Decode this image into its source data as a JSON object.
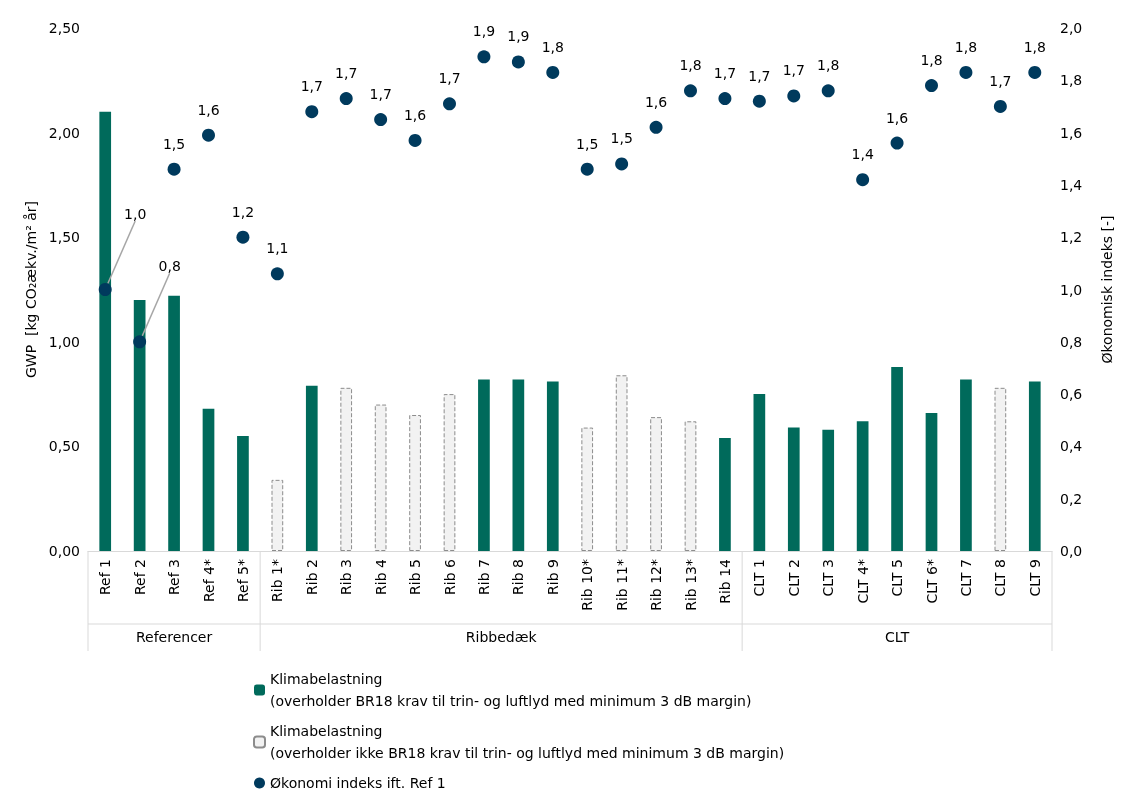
{
  "chart_data": {
    "type": "bar",
    "ylabel": "GWP  [kg CO₂ækv./m² år]",
    "y2label": "Økonomisk indeks [-]",
    "categories": [
      "Ref 1",
      "Ref 2",
      "Ref 3",
      "Ref 4*",
      "Ref 5*",
      "Rib 1*",
      "Rib 2",
      "Rib 3",
      "Rib 4",
      "Rib 5",
      "Rib 6",
      "Rib 7",
      "Rib 8",
      "Rib 9",
      "Rib 10*",
      "Rib 11*",
      "Rib 12*",
      "Rib 13*",
      "Rib 14",
      "CLT 1",
      "CLT 2",
      "CLT 3",
      "CLT 4*",
      "CLT 5",
      "CLT 6*",
      "CLT 7",
      "CLT 8",
      "CLT 9"
    ],
    "series": [
      {
        "name": "Klimabelastning\n(overholder BR18 krav til trin- og luftlyd med minimum 3 dB margin)",
        "color": "#006a5b",
        "values": [
          2.1,
          1.2,
          1.22,
          0.68,
          0.55,
          null,
          0.79,
          null,
          null,
          null,
          null,
          0.82,
          0.82,
          0.81,
          null,
          null,
          null,
          null,
          0.54,
          0.75,
          0.59,
          0.58,
          0.62,
          0.88,
          0.66,
          0.82,
          null,
          0.81
        ]
      },
      {
        "name": "Klimabelastning\n(overholder ikke BR18 krav til trin- og luftlyd med minimum 3 dB margin)",
        "color": "#f2f2f2",
        "line_style": "dashed",
        "values": [
          null,
          null,
          null,
          null,
          null,
          0.34,
          null,
          0.78,
          0.7,
          0.65,
          0.75,
          null,
          null,
          null,
          0.59,
          0.84,
          0.64,
          0.62,
          null,
          null,
          null,
          null,
          null,
          null,
          null,
          null,
          0.78,
          null
        ]
      },
      {
        "type": "scatter",
        "axis": "y2",
        "name": "Økonomi indeks ift. Ref 1",
        "color": "#003a5d",
        "marker": "circle",
        "values": [
          1.0,
          0.8,
          1.46,
          1.59,
          1.2,
          1.06,
          1.68,
          1.73,
          1.65,
          1.57,
          1.71,
          1.89,
          1.87,
          1.83,
          1.46,
          1.48,
          1.62,
          1.76,
          1.73,
          1.72,
          1.74,
          1.76,
          1.42,
          1.56,
          1.78,
          1.83,
          1.7,
          1.83
        ],
        "value_labels": [
          "1,0",
          "0,8",
          "1,5",
          "1,6",
          "1,2",
          "1,1",
          "1,7",
          "1,7",
          "1,7",
          "1,6",
          "1,7",
          "1,9",
          "1,9",
          "1,8",
          "1,5",
          "1,5",
          "1,6",
          "1,8",
          "1,7",
          "1,7",
          "1,7",
          "1,8",
          "1,4",
          "1,6",
          "1,8",
          "1,8",
          "1,7",
          "1,8"
        ]
      }
    ],
    "ylim": [
      0,
      2.5
    ],
    "yticks": [
      {
        "value": 0,
        "label": "0,00"
      },
      {
        "value": 0.5,
        "label": "0,50"
      },
      {
        "value": 1,
        "label": "1,00"
      },
      {
        "value": 1.5,
        "label": "1,50"
      },
      {
        "value": 2,
        "label": "2,00"
      },
      {
        "value": 2.5,
        "label": "2,50"
      }
    ],
    "y2lim": [
      0,
      2
    ],
    "y2ticks": [
      {
        "value": 0,
        "label": "0,0"
      },
      {
        "value": 0.2,
        "label": "0,2"
      },
      {
        "value": 0.4,
        "label": "0,4"
      },
      {
        "value": 0.6,
        "label": "0,6"
      },
      {
        "value": 0.8,
        "label": "0,8"
      },
      {
        "value": 1,
        "label": "1,0"
      },
      {
        "value": 1.2,
        "label": "1,2"
      },
      {
        "value": 1.4,
        "label": "1,4"
      },
      {
        "value": 1.6,
        "label": "1,6"
      },
      {
        "value": 1.8,
        "label": "1,8"
      },
      {
        "value": 2,
        "label": "2,0"
      }
    ],
    "annotations": [
      "Referencer",
      "Ribbedæk",
      "CLT"
    ],
    "grid": false,
    "legend": "bottom"
  }
}
